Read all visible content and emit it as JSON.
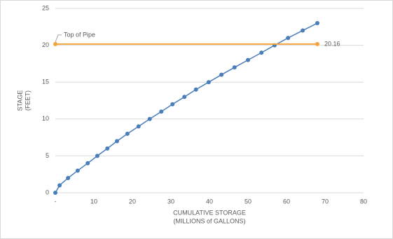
{
  "chart_data": {
    "type": "line",
    "y_label": [
      "STAGE",
      "(FEET)"
    ],
    "x_label": [
      "CUMULATIVE STORAGE",
      "(MILLIONS of GALLONS)"
    ],
    "annotations": [
      {
        "text": "Top of Pipe"
      }
    ],
    "series": [
      {
        "color": "#4a7ebb",
        "x": [
          0,
          1.1,
          3.3,
          5.8,
          8.4,
          10.9,
          13.5,
          16,
          18.7,
          21.6,
          24.5,
          27.5,
          30.4,
          33.5,
          36.5,
          39.8,
          43.1,
          46.5,
          50,
          53.5,
          56.9,
          60.4,
          64.2,
          68
        ],
        "values": [
          0,
          1,
          2,
          3,
          4,
          5,
          6,
          7,
          8,
          9,
          10,
          11,
          12,
          13,
          14,
          15,
          16,
          17,
          18,
          19,
          20,
          21,
          22,
          23
        ]
      },
      {
        "color": "#f4a43c",
        "x": [
          0,
          68
        ],
        "values": [
          20.16,
          20.16
        ]
      }
    ],
    "xlim": [
      0,
      80
    ],
    "xticks": [
      {
        "value": 0,
        "label": "-"
      },
      10,
      20,
      30,
      40,
      50,
      60,
      70,
      80
    ],
    "ylim": [
      0,
      25
    ],
    "yticks": [
      0,
      5,
      10,
      15,
      20,
      25
    ],
    "grid": true
  }
}
